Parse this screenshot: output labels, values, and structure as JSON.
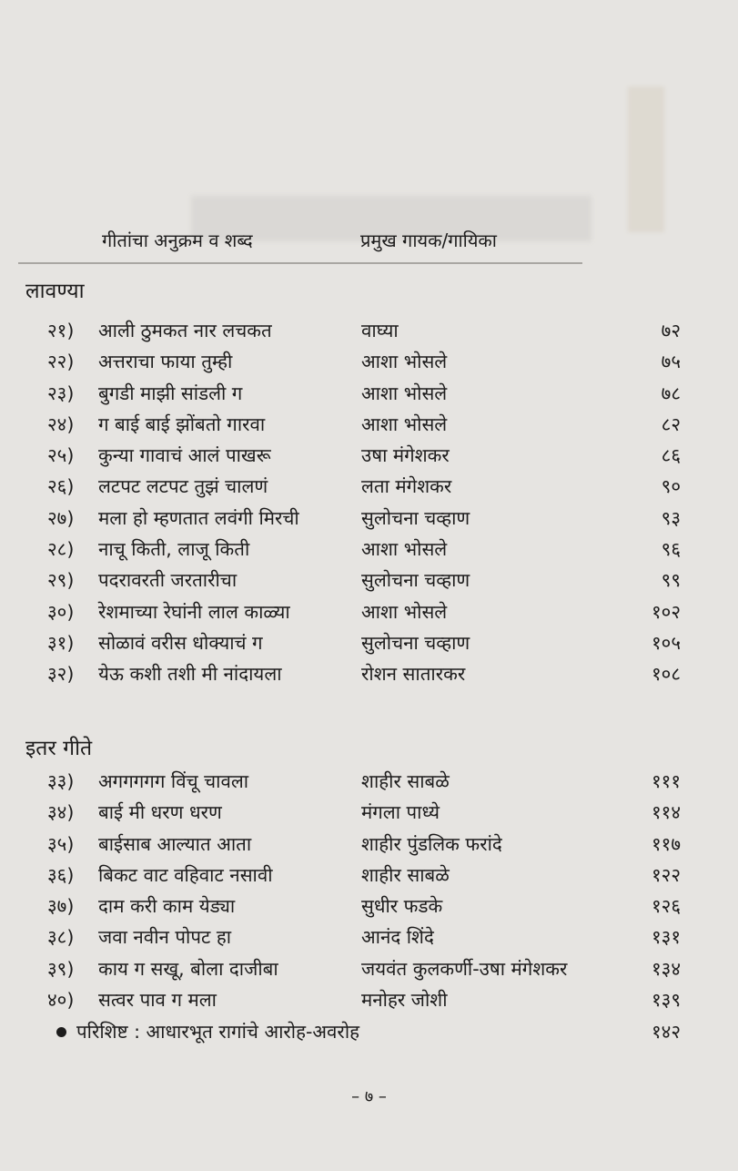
{
  "header": {
    "col_songs": "गीतांचा अनुक्रम व शब्द",
    "col_singers": "प्रमुख गायक/गायिका"
  },
  "sections": [
    {
      "title": "लावण्या",
      "rows": [
        {
          "num": "२१)",
          "title": "आली ठुमकत नार लचकत",
          "singer": "वाघ्या",
          "page": "७२"
        },
        {
          "num": "२२)",
          "title": "अत्तराचा फाया तुम्ही",
          "singer": "आशा भोसले",
          "page": "७५"
        },
        {
          "num": "२३)",
          "title": "बुगडी माझी सांडली ग",
          "singer": "आशा भोसले",
          "page": "७८"
        },
        {
          "num": "२४)",
          "title": "ग बाई बाई झोंबतो गारवा",
          "singer": "आशा भोसले",
          "page": "८२"
        },
        {
          "num": "२५)",
          "title": "कुन्या गावाचं आलं पाखरू",
          "singer": "उषा मंगेशकर",
          "page": "८६"
        },
        {
          "num": "२६)",
          "title": "लटपट लटपट तुझं चालणं",
          "singer": "लता मंगेशकर",
          "page": "९०"
        },
        {
          "num": "२७)",
          "title": "मला हो म्हणतात लवंगी मिरची",
          "singer": "सुलोचना चव्हाण",
          "page": "९३"
        },
        {
          "num": "२८)",
          "title": "नाचू किती, लाजू किती",
          "singer": "आशा भोसले",
          "page": "९६"
        },
        {
          "num": "२९)",
          "title": "पदरावरती जरतारीचा",
          "singer": "सुलोचना चव्हाण",
          "page": "९९"
        },
        {
          "num": "३०)",
          "title": "रेशमाच्या रेघांनी लाल काळ्या",
          "singer": "आशा भोसले",
          "page": "१०२"
        },
        {
          "num": "३१)",
          "title": "सोळावं वरीस धोक्याचं ग",
          "singer": "सुलोचना चव्हाण",
          "page": "१०५"
        },
        {
          "num": "३२)",
          "title": "येऊ कशी तशी मी नांदायला",
          "singer": "रोशन सातारकर",
          "page": "१०८"
        }
      ]
    },
    {
      "title": "इतर गीते",
      "rows": [
        {
          "num": "३३)",
          "title": "अगगगगग विंचू चावला",
          "singer": "शाहीर साबळे",
          "page": "१११"
        },
        {
          "num": "३४)",
          "title": "बाई मी धरण धरण",
          "singer": "मंगला पाध्ये",
          "page": "११४"
        },
        {
          "num": "३५)",
          "title": "बाईसाब आल्यात आता",
          "singer": "शाहीर पुंडलिक फरांदे",
          "page": "११७"
        },
        {
          "num": "३६)",
          "title": "बिकट वाट वहिवाट नसावी",
          "singer": "शाहीर साबळे",
          "page": "१२२"
        },
        {
          "num": "३७)",
          "title": "दाम करी काम येड्या",
          "singer": "सुधीर फडके",
          "page": "१२६"
        },
        {
          "num": "३८)",
          "title": "जवा नवीन पोपट हा",
          "singer": "आनंद शिंदे",
          "page": "१३१"
        },
        {
          "num": "३९)",
          "title": "काय ग सखू, बोला दाजीबा",
          "singer": "जयवंत कुलकर्णी-उषा मंगेशकर",
          "page": "१३४"
        },
        {
          "num": "४०)",
          "title": "सत्वर पाव ग मला",
          "singer": "मनोहर जोशी",
          "page": "१३९"
        }
      ]
    }
  ],
  "appendix": {
    "title": "परिशिष्ट : आधारभूत रागांचे आरोह-अवरोह",
    "page": "१४२"
  },
  "page_number": "– ७ –"
}
